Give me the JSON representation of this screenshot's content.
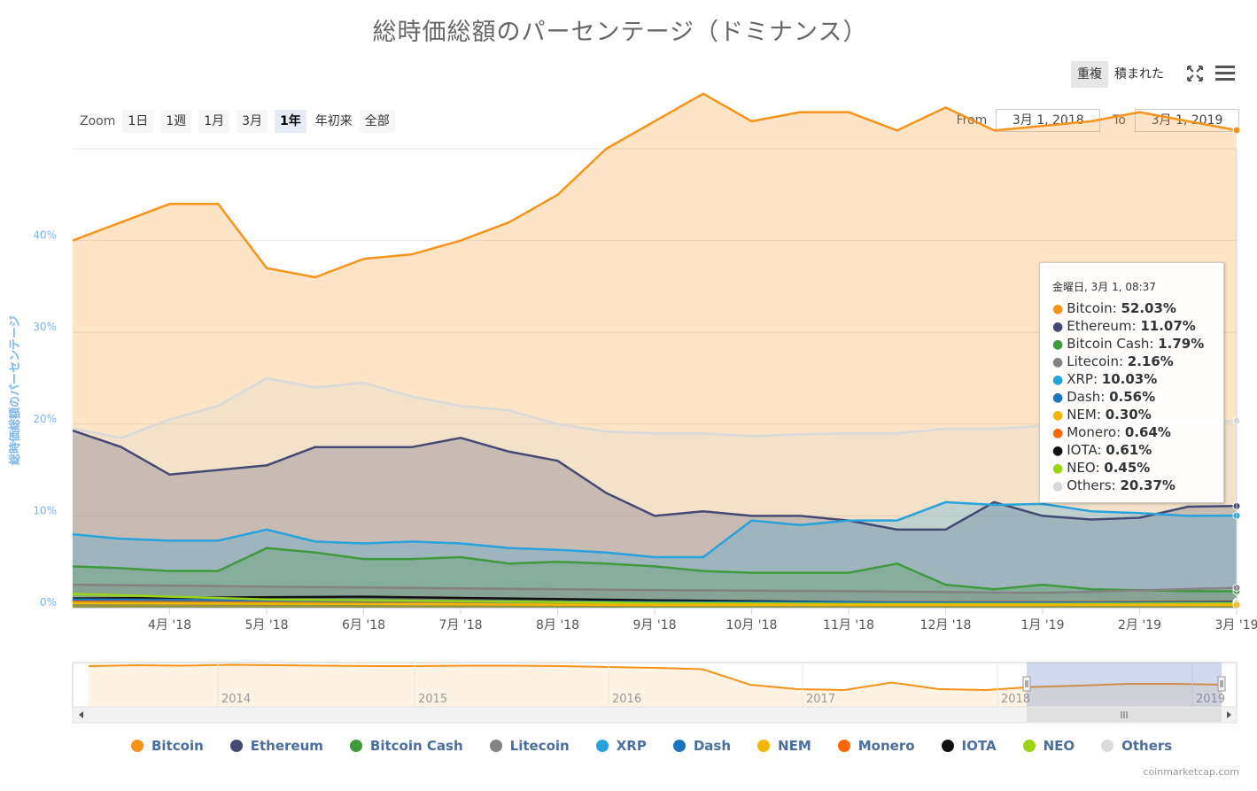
{
  "title": "総時価総額のパーセンテージ（ドミナンス）",
  "mode_toggle": {
    "overlap": "重複",
    "stacked": "積まれた",
    "active": "overlap"
  },
  "icons": {
    "fullscreen": "fullscreen-icon",
    "menu": "hamburger-menu-icon"
  },
  "zoom": {
    "label": "Zoom",
    "buttons": [
      "1日",
      "1週",
      "1月",
      "3月",
      "1年",
      "年初来",
      "全部"
    ],
    "active": "1年"
  },
  "range": {
    "from_label": "From",
    "from_value": "3月 1, 2018",
    "to_label": "To",
    "to_value": "3月 1, 2019"
  },
  "y_axis_title": "総時価総額のパーセンテージ",
  "tooltip": {
    "date": "金曜日, 3月 1, 08:37",
    "rows": [
      {
        "name": "Bitcoin",
        "value": "52.03%",
        "color": "#f7931a"
      },
      {
        "name": "Ethereum",
        "value": "11.07%",
        "color": "#454a75"
      },
      {
        "name": "Bitcoin Cash",
        "value": "1.79%",
        "color": "#3e9a3c"
      },
      {
        "name": "Litecoin",
        "value": "2.16%",
        "color": "#838383"
      },
      {
        "name": "XRP",
        "value": "10.03%",
        "color": "#27a2db"
      },
      {
        "name": "Dash",
        "value": "0.56%",
        "color": "#1c75bc"
      },
      {
        "name": "NEM",
        "value": "0.30%",
        "color": "#f6b500"
      },
      {
        "name": "Monero",
        "value": "0.64%",
        "color": "#ff6600"
      },
      {
        "name": "IOTA",
        "value": "0.61%",
        "color": "#111111"
      },
      {
        "name": "NEO",
        "value": "0.45%",
        "color": "#9bd414"
      },
      {
        "name": "Others",
        "value": "20.37%",
        "color": "#d9d9d9"
      }
    ]
  },
  "credits": "coinmarketcap.com",
  "chart_data": {
    "type": "area",
    "x_ticks": [
      "4月 '18",
      "5月 '18",
      "6月 '18",
      "7月 '18",
      "8月 '18",
      "9月 '18",
      "10月 '18",
      "11月 '18",
      "12月 '18",
      "1月 '19",
      "2月 '19",
      "3月 '19"
    ],
    "x_tick_months": [
      1,
      2,
      3,
      4,
      5,
      6,
      7,
      8,
      9,
      10,
      11,
      12
    ],
    "y_ticks": [
      "0%",
      "10%",
      "20%",
      "30%",
      "40%"
    ],
    "y_tick_values": [
      0,
      10,
      20,
      30,
      40
    ],
    "ylim": [
      0,
      50
    ],
    "ylabel": "総時価総額のパーセンテージ",
    "series": [
      {
        "name": "Bitcoin",
        "color": "#f7931a",
        "x": [
          0,
          0.5,
          1,
          1.5,
          2,
          2.5,
          3,
          3.5,
          4,
          4.5,
          5,
          5.5,
          6,
          6.5,
          7,
          7.5,
          8,
          8.5,
          9,
          9.5,
          10,
          10.5,
          11,
          11.5,
          12
        ],
        "values": [
          40,
          42,
          44,
          44,
          37,
          36,
          38,
          38.5,
          40,
          42,
          45,
          50,
          53,
          56,
          53,
          54,
          54,
          52,
          54.5,
          52,
          52.5,
          53,
          54,
          53,
          52.03
        ]
      },
      {
        "name": "Others",
        "color": "#d9d9d9",
        "x": [
          0,
          0.5,
          1,
          1.5,
          2,
          2.5,
          3,
          3.5,
          4,
          4.5,
          5,
          5.5,
          6,
          6.5,
          7,
          7.5,
          8,
          8.5,
          9,
          9.5,
          10,
          10.5,
          11,
          11.5,
          12
        ],
        "values": [
          19.5,
          18.5,
          20.5,
          22,
          25,
          24,
          24.5,
          23,
          22,
          21.5,
          20,
          19.2,
          19,
          19,
          18.7,
          18.9,
          19,
          19,
          19.5,
          19.5,
          19.8,
          19.8,
          20,
          20.2,
          20.37
        ]
      },
      {
        "name": "Ethereum",
        "color": "#454a75",
        "x": [
          0,
          0.5,
          1,
          1.5,
          2,
          2.5,
          3,
          3.5,
          4,
          4.5,
          5,
          5.5,
          6,
          6.5,
          7,
          7.5,
          8,
          8.5,
          9,
          9.5,
          10,
          10.5,
          11,
          11.5,
          12
        ],
        "values": [
          19.3,
          17.5,
          14.5,
          15,
          15.5,
          17.5,
          17.5,
          17.5,
          18.5,
          17,
          16,
          12.5,
          10,
          10.5,
          10,
          10,
          9.5,
          8.5,
          8.5,
          11.5,
          10,
          9.6,
          9.8,
          11,
          11.07
        ]
      },
      {
        "name": "XRP",
        "color": "#27a2db",
        "x": [
          0,
          0.5,
          1,
          1.5,
          2,
          2.5,
          3,
          3.5,
          4,
          4.5,
          5,
          5.5,
          6,
          6.5,
          7,
          7.5,
          8,
          8.5,
          9,
          9.5,
          10,
          10.5,
          11,
          11.5,
          12
        ],
        "values": [
          8,
          7.5,
          7.3,
          7.3,
          8.5,
          7.2,
          7,
          7.2,
          7,
          6.5,
          6.3,
          6,
          5.5,
          5.5,
          9.5,
          9,
          9.5,
          9.5,
          11.5,
          11.2,
          11.3,
          10.5,
          10.3,
          10,
          10.03
        ]
      },
      {
        "name": "Bitcoin Cash",
        "color": "#3e9a3c",
        "x": [
          0,
          0.5,
          1,
          1.5,
          2,
          2.5,
          3,
          3.5,
          4,
          4.5,
          5,
          5.5,
          6,
          6.5,
          7,
          7.5,
          8,
          8.5,
          9,
          9.5,
          10,
          10.5,
          11,
          11.5,
          12
        ],
        "values": [
          4.5,
          4.3,
          4,
          4,
          6.5,
          6,
          5.3,
          5.3,
          5.5,
          4.8,
          5,
          4.8,
          4.5,
          4,
          3.8,
          3.8,
          3.8,
          4.8,
          2.5,
          2,
          2.5,
          2,
          1.9,
          1.8,
          1.79
        ]
      },
      {
        "name": "Litecoin",
        "color": "#838383",
        "x": [
          0,
          2,
          4,
          6,
          8,
          10,
          12
        ],
        "values": [
          2.5,
          2.3,
          2.1,
          1.9,
          1.8,
          1.6,
          2.16
        ]
      },
      {
        "name": "Monero",
        "color": "#ff6600",
        "x": [
          0,
          6,
          12
        ],
        "values": [
          0.8,
          0.6,
          0.64
        ]
      },
      {
        "name": "IOTA",
        "color": "#111111",
        "x": [
          0,
          3,
          6,
          9,
          12
        ],
        "values": [
          1.0,
          1.2,
          0.8,
          0.5,
          0.61
        ]
      },
      {
        "name": "Dash",
        "color": "#1c75bc",
        "x": [
          0,
          6,
          12
        ],
        "values": [
          0.9,
          0.6,
          0.56
        ]
      },
      {
        "name": "NEO",
        "color": "#9bd414",
        "x": [
          0,
          1,
          2,
          4,
          6,
          8,
          10,
          12
        ],
        "values": [
          1.5,
          1.2,
          0.9,
          0.7,
          0.5,
          0.4,
          0.4,
          0.45
        ]
      },
      {
        "name": "NEM",
        "color": "#f6b500",
        "x": [
          0,
          6,
          12
        ],
        "values": [
          0.5,
          0.3,
          0.3
        ]
      }
    ],
    "navigator": {
      "x_labels": [
        "2014",
        "2015",
        "2016",
        "2017",
        "2018",
        "2019"
      ],
      "series_name": "Bitcoin",
      "values": [
        92,
        94,
        93,
        95,
        94,
        93,
        92,
        92,
        93,
        93,
        92,
        90,
        88,
        85,
        50,
        40,
        38,
        55,
        40,
        38,
        45,
        48,
        52,
        52,
        50
      ]
    },
    "legend": [
      "Bitcoin",
      "Ethereum",
      "Bitcoin Cash",
      "Litecoin",
      "XRP",
      "Dash",
      "NEM",
      "Monero",
      "IOTA",
      "NEO",
      "Others"
    ],
    "legend_position": "bottom"
  }
}
